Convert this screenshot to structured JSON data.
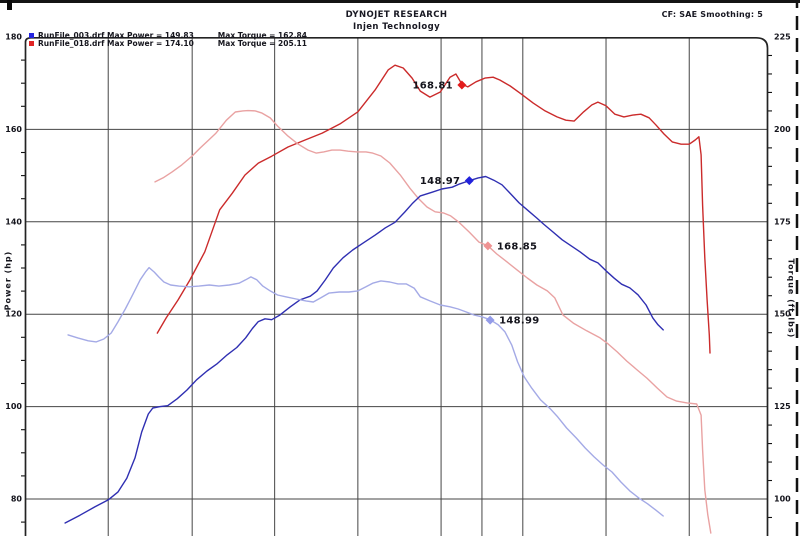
{
  "header": {
    "title": "DYNOJET RESEARCH",
    "subtitle": "Injen Technology",
    "correction": "CF: SAE  Smoothing: 5"
  },
  "legend": {
    "rows": [
      {
        "left_text": "RunFile_003.drf Max Power = 149.83",
        "right_text": "Max Torque = 162.84",
        "color": "#2424e0"
      },
      {
        "left_text": "RunFile_018.drf Max Power = 174.10",
        "right_text": "Max Torque = 205.11",
        "color": "#e02424"
      }
    ]
  },
  "axes": {
    "left": {
      "title": "Power (hp)",
      "ticks": [
        180,
        160,
        140,
        120,
        100,
        80
      ],
      "minor_step": 5,
      "range": [
        80,
        180
      ]
    },
    "right": {
      "title": "Torque (ft-lbs)",
      "ticks": [
        225,
        200,
        175,
        150,
        125,
        100
      ],
      "minor_step": 5,
      "range": [
        100,
        225
      ]
    }
  },
  "chart_data": {
    "type": "line",
    "title": "DYNOJET RESEARCH - Injen Technology",
    "x_axis_visible": false,
    "grid": true,
    "vertical_gridlines_f": [
      0.112,
      0.225,
      0.336,
      0.448,
      0.56,
      0.615,
      0.67,
      0.782,
      0.894
    ],
    "colors": {
      "grid": "#454545",
      "border": "#232323",
      "label_text": "#14141c"
    },
    "series": [
      {
        "id": "run018-power",
        "name": "RunFile_018.drf Power",
        "axis": "hp",
        "color": "#cb2b2b",
        "width": 1.4,
        "points": [
          [
            0.178,
            115.9
          ],
          [
            0.19,
            119.2
          ],
          [
            0.206,
            123.1
          ],
          [
            0.222,
            127.4
          ],
          [
            0.242,
            133.5
          ],
          [
            0.262,
            142.6
          ],
          [
            0.279,
            146.2
          ],
          [
            0.296,
            150.1
          ],
          [
            0.314,
            152.7
          ],
          [
            0.332,
            154.2
          ],
          [
            0.354,
            156.2
          ],
          [
            0.377,
            157.7
          ],
          [
            0.4,
            159.2
          ],
          [
            0.424,
            161.2
          ],
          [
            0.448,
            163.8
          ],
          [
            0.471,
            168.5
          ],
          [
            0.489,
            172.9
          ],
          [
            0.498,
            173.9
          ],
          [
            0.509,
            173.3
          ],
          [
            0.521,
            171.1
          ],
          [
            0.532,
            168.3
          ],
          [
            0.545,
            167.0
          ],
          [
            0.559,
            168.1
          ],
          [
            0.572,
            171.3
          ],
          [
            0.58,
            172.0
          ],
          [
            0.588,
            169.8
          ],
          [
            0.596,
            169.2
          ],
          [
            0.607,
            170.3
          ],
          [
            0.619,
            171.1
          ],
          [
            0.63,
            171.3
          ],
          [
            0.639,
            170.7
          ],
          [
            0.653,
            169.4
          ],
          [
            0.666,
            167.9
          ],
          [
            0.684,
            165.7
          ],
          [
            0.7,
            164.0
          ],
          [
            0.716,
            162.7
          ],
          [
            0.728,
            162.0
          ],
          [
            0.739,
            161.8
          ],
          [
            0.752,
            163.8
          ],
          [
            0.763,
            165.3
          ],
          [
            0.771,
            165.9
          ],
          [
            0.782,
            165.1
          ],
          [
            0.794,
            163.3
          ],
          [
            0.806,
            162.7
          ],
          [
            0.818,
            163.1
          ],
          [
            0.829,
            163.3
          ],
          [
            0.84,
            162.5
          ],
          [
            0.849,
            161.0
          ],
          [
            0.86,
            159.0
          ],
          [
            0.871,
            157.3
          ],
          [
            0.883,
            156.8
          ],
          [
            0.894,
            156.8
          ],
          [
            0.902,
            157.7
          ],
          [
            0.907,
            158.4
          ],
          [
            0.91,
            154.5
          ],
          [
            0.912,
            143.6
          ],
          [
            0.915,
            132.2
          ],
          [
            0.918,
            123.1
          ],
          [
            0.921,
            115.5
          ],
          [
            0.922,
            111.6
          ]
        ]
      },
      {
        "id": "run018-torque",
        "name": "RunFile_018.drf Torque",
        "axis": "tq",
        "color": "#e9a2a2",
        "width": 1.4,
        "points": [
          [
            0.175,
            185.8
          ],
          [
            0.186,
            186.9
          ],
          [
            0.198,
            188.5
          ],
          [
            0.211,
            190.4
          ],
          [
            0.225,
            192.8
          ],
          [
            0.236,
            195.0
          ],
          [
            0.246,
            196.9
          ],
          [
            0.257,
            199.0
          ],
          [
            0.271,
            202.5
          ],
          [
            0.283,
            204.7
          ],
          [
            0.293,
            205.0
          ],
          [
            0.3,
            205.1
          ],
          [
            0.31,
            205.0
          ],
          [
            0.319,
            204.4
          ],
          [
            0.33,
            203.1
          ],
          [
            0.34,
            200.9
          ],
          [
            0.354,
            198.2
          ],
          [
            0.367,
            196.1
          ],
          [
            0.381,
            194.4
          ],
          [
            0.392,
            193.6
          ],
          [
            0.402,
            193.9
          ],
          [
            0.413,
            194.4
          ],
          [
            0.424,
            194.4
          ],
          [
            0.435,
            194.1
          ],
          [
            0.447,
            193.9
          ],
          [
            0.459,
            193.9
          ],
          [
            0.468,
            193.6
          ],
          [
            0.479,
            192.8
          ],
          [
            0.491,
            190.9
          ],
          [
            0.505,
            187.7
          ],
          [
            0.518,
            184.1
          ],
          [
            0.53,
            181.2
          ],
          [
            0.541,
            179.0
          ],
          [
            0.552,
            177.7
          ],
          [
            0.563,
            177.4
          ],
          [
            0.573,
            176.6
          ],
          [
            0.584,
            174.9
          ],
          [
            0.598,
            172.2
          ],
          [
            0.611,
            169.5
          ],
          [
            0.623,
            168.5
          ],
          [
            0.635,
            166.3
          ],
          [
            0.649,
            164.1
          ],
          [
            0.662,
            162.0
          ],
          [
            0.676,
            159.8
          ],
          [
            0.689,
            157.9
          ],
          [
            0.703,
            156.3
          ],
          [
            0.713,
            154.4
          ],
          [
            0.724,
            149.8
          ],
          [
            0.738,
            147.6
          ],
          [
            0.756,
            145.5
          ],
          [
            0.774,
            143.6
          ],
          [
            0.785,
            141.9
          ],
          [
            0.797,
            139.8
          ],
          [
            0.81,
            137.3
          ],
          [
            0.824,
            134.9
          ],
          [
            0.837,
            132.7
          ],
          [
            0.851,
            130.0
          ],
          [
            0.864,
            127.6
          ],
          [
            0.877,
            126.5
          ],
          [
            0.891,
            126.0
          ],
          [
            0.904,
            125.7
          ],
          [
            0.91,
            122.7
          ],
          [
            0.912,
            113.3
          ],
          [
            0.915,
            102.5
          ],
          [
            0.919,
            95.7
          ],
          [
            0.923,
            90.8
          ]
        ]
      },
      {
        "id": "run003-power",
        "name": "RunFile_003.drf Power",
        "axis": "hp",
        "color": "#2f2fb2",
        "width": 1.4,
        "points": [
          [
            0.054,
            74.8
          ],
          [
            0.074,
            76.5
          ],
          [
            0.094,
            78.3
          ],
          [
            0.112,
            79.8
          ],
          [
            0.125,
            81.5
          ],
          [
            0.137,
            84.5
          ],
          [
            0.148,
            88.9
          ],
          [
            0.157,
            94.5
          ],
          [
            0.166,
            98.4
          ],
          [
            0.172,
            99.7
          ],
          [
            0.182,
            100.0
          ],
          [
            0.192,
            100.2
          ],
          [
            0.205,
            101.7
          ],
          [
            0.218,
            103.6
          ],
          [
            0.231,
            105.8
          ],
          [
            0.245,
            107.7
          ],
          [
            0.258,
            109.2
          ],
          [
            0.272,
            111.2
          ],
          [
            0.285,
            112.8
          ],
          [
            0.297,
            114.9
          ],
          [
            0.306,
            116.9
          ],
          [
            0.314,
            118.4
          ],
          [
            0.323,
            119.0
          ],
          [
            0.332,
            118.8
          ],
          [
            0.343,
            119.8
          ],
          [
            0.357,
            121.6
          ],
          [
            0.37,
            123.1
          ],
          [
            0.384,
            123.9
          ],
          [
            0.393,
            125.0
          ],
          [
            0.404,
            127.4
          ],
          [
            0.415,
            130.0
          ],
          [
            0.428,
            132.2
          ],
          [
            0.441,
            133.9
          ],
          [
            0.455,
            135.4
          ],
          [
            0.471,
            137.1
          ],
          [
            0.485,
            138.7
          ],
          [
            0.498,
            139.9
          ],
          [
            0.511,
            142.1
          ],
          [
            0.521,
            143.9
          ],
          [
            0.532,
            145.6
          ],
          [
            0.548,
            146.4
          ],
          [
            0.561,
            147.1
          ],
          [
            0.575,
            147.5
          ],
          [
            0.585,
            148.2
          ],
          [
            0.598,
            148.9
          ],
          [
            0.61,
            149.5
          ],
          [
            0.62,
            149.8
          ],
          [
            0.631,
            149.0
          ],
          [
            0.642,
            148.0
          ],
          [
            0.654,
            146.0
          ],
          [
            0.665,
            144.1
          ],
          [
            0.678,
            142.3
          ],
          [
            0.689,
            140.8
          ],
          [
            0.698,
            139.5
          ],
          [
            0.709,
            138.0
          ],
          [
            0.723,
            136.1
          ],
          [
            0.735,
            134.8
          ],
          [
            0.747,
            133.5
          ],
          [
            0.76,
            131.9
          ],
          [
            0.771,
            131.1
          ],
          [
            0.782,
            129.4
          ],
          [
            0.793,
            127.8
          ],
          [
            0.803,
            126.5
          ],
          [
            0.814,
            125.7
          ],
          [
            0.825,
            124.2
          ],
          [
            0.836,
            122.0
          ],
          [
            0.845,
            119.2
          ],
          [
            0.852,
            117.7
          ],
          [
            0.859,
            116.6
          ]
        ]
      },
      {
        "id": "run003-torque",
        "name": "RunFile_003.drf Torque",
        "axis": "tq",
        "color": "#a4aae6",
        "width": 1.4,
        "points": [
          [
            0.058,
            144.4
          ],
          [
            0.071,
            143.6
          ],
          [
            0.085,
            142.8
          ],
          [
            0.096,
            142.5
          ],
          [
            0.106,
            143.3
          ],
          [
            0.116,
            144.9
          ],
          [
            0.125,
            147.9
          ],
          [
            0.135,
            151.4
          ],
          [
            0.144,
            154.9
          ],
          [
            0.155,
            159.3
          ],
          [
            0.162,
            161.4
          ],
          [
            0.167,
            162.6
          ],
          [
            0.174,
            161.4
          ],
          [
            0.18,
            160.1
          ],
          [
            0.187,
            158.7
          ],
          [
            0.196,
            157.9
          ],
          [
            0.207,
            157.6
          ],
          [
            0.221,
            157.4
          ],
          [
            0.234,
            157.6
          ],
          [
            0.248,
            157.9
          ],
          [
            0.261,
            157.6
          ],
          [
            0.275,
            157.9
          ],
          [
            0.288,
            158.4
          ],
          [
            0.297,
            159.3
          ],
          [
            0.304,
            160.1
          ],
          [
            0.312,
            159.3
          ],
          [
            0.32,
            157.6
          ],
          [
            0.33,
            156.3
          ],
          [
            0.34,
            155.2
          ],
          [
            0.351,
            154.7
          ],
          [
            0.365,
            154.1
          ],
          [
            0.378,
            153.6
          ],
          [
            0.388,
            153.3
          ],
          [
            0.398,
            154.4
          ],
          [
            0.409,
            155.7
          ],
          [
            0.423,
            156.0
          ],
          [
            0.436,
            156.0
          ],
          [
            0.448,
            156.3
          ],
          [
            0.459,
            157.4
          ],
          [
            0.468,
            158.4
          ],
          [
            0.479,
            159.0
          ],
          [
            0.491,
            158.7
          ],
          [
            0.502,
            158.2
          ],
          [
            0.513,
            158.2
          ],
          [
            0.524,
            157.0
          ],
          [
            0.532,
            154.7
          ],
          [
            0.545,
            153.6
          ],
          [
            0.559,
            152.5
          ],
          [
            0.572,
            152.0
          ],
          [
            0.583,
            151.4
          ],
          [
            0.594,
            150.6
          ],
          [
            0.604,
            149.8
          ],
          [
            0.615,
            149.3
          ],
          [
            0.626,
            148.5
          ],
          [
            0.637,
            147.1
          ],
          [
            0.646,
            145.2
          ],
          [
            0.655,
            141.7
          ],
          [
            0.663,
            137.1
          ],
          [
            0.672,
            133.0
          ],
          [
            0.682,
            130.0
          ],
          [
            0.694,
            126.8
          ],
          [
            0.707,
            124.4
          ],
          [
            0.717,
            122.2
          ],
          [
            0.729,
            119.2
          ],
          [
            0.742,
            116.5
          ],
          [
            0.754,
            113.8
          ],
          [
            0.766,
            111.4
          ],
          [
            0.778,
            109.2
          ],
          [
            0.79,
            107.3
          ],
          [
            0.802,
            104.6
          ],
          [
            0.814,
            102.2
          ],
          [
            0.826,
            100.3
          ],
          [
            0.838,
            98.7
          ],
          [
            0.849,
            97.0
          ],
          [
            0.859,
            95.4
          ]
        ]
      }
    ],
    "markers": [
      {
        "label": "168.81",
        "axis": "hp",
        "f": 0.588,
        "value": 169.6,
        "color": "#e31b1b",
        "label_side": "left"
      },
      {
        "label": "148.97",
        "axis": "hp",
        "f": 0.598,
        "value": 148.9,
        "color": "#2222dc",
        "label_side": "left"
      },
      {
        "label": "168.85",
        "axis": "tq",
        "f": 0.623,
        "value": 168.5,
        "color": "#ef9393",
        "label_side": "right"
      },
      {
        "label": "148.99",
        "axis": "tq",
        "f": 0.626,
        "value": 148.4,
        "color": "#949ce9",
        "label_side": "right"
      }
    ]
  }
}
